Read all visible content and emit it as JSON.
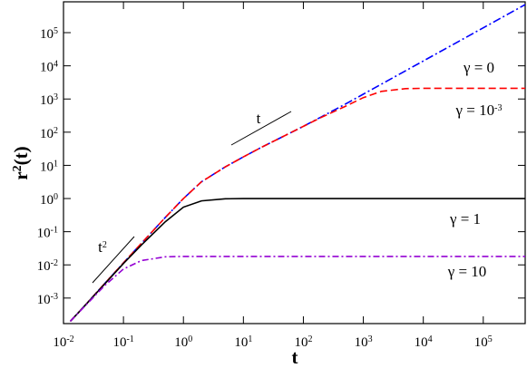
{
  "chart_data": {
    "type": "line",
    "log_x": true,
    "log_y": true,
    "xlabel": "t",
    "ylabel": {
      "base": "r",
      "exponent": "2",
      "rest": "(t)"
    },
    "xlim": [
      0.01,
      500000
    ],
    "ylim": [
      0.00017,
      850000
    ],
    "xticks": [
      {
        "value": 0.01,
        "label": "10",
        "exponent": "-2"
      },
      {
        "value": 0.1,
        "label": "10",
        "exponent": "-1"
      },
      {
        "value": 1,
        "label": "10",
        "exponent": "0"
      },
      {
        "value": 10,
        "label": "10",
        "exponent": "1"
      },
      {
        "value": 100,
        "label": "10",
        "exponent": "2"
      },
      {
        "value": 1000,
        "label": "10",
        "exponent": "3"
      },
      {
        "value": 10000,
        "label": "10",
        "exponent": "4"
      },
      {
        "value": 100000,
        "label": "10",
        "exponent": "5"
      }
    ],
    "yticks": [
      {
        "value": 0.001,
        "label": "10",
        "exponent": "-3"
      },
      {
        "value": 0.01,
        "label": "10",
        "exponent": "-2"
      },
      {
        "value": 0.1,
        "label": "10",
        "exponent": "-1"
      },
      {
        "value": 1,
        "label": "10",
        "exponent": "0"
      },
      {
        "value": 10,
        "label": "10",
        "exponent": "1"
      },
      {
        "value": 100,
        "label": "10",
        "exponent": "2"
      },
      {
        "value": 1000,
        "label": "10",
        "exponent": "3"
      },
      {
        "value": 10000,
        "label": "10",
        "exponent": "4"
      },
      {
        "value": 100000,
        "label": "10",
        "exponent": "5"
      }
    ],
    "x": [
      0.013,
      0.02,
      0.05,
      0.1,
      0.2,
      0.5,
      1,
      2,
      5,
      10,
      20,
      50,
      100,
      200,
      500,
      1000,
      2000,
      5000,
      10000,
      100000,
      500000
    ],
    "series": [
      {
        "name": "γ = 0",
        "color": "#0000ff",
        "dash": "9,3,2,3",
        "values": [
          0.0002,
          0.00046,
          0.0029,
          0.0115,
          0.045,
          0.27,
          1.0,
          3.2,
          9,
          18,
          35,
          80,
          150,
          290,
          700,
          1400,
          2800,
          7000,
          14000,
          140000,
          700000
        ]
      },
      {
        "name": "γ = 10",
        "name_exponent": "-3",
        "color": "#ff0000",
        "dash": "8,4",
        "values": [
          0.0002,
          0.00046,
          0.0029,
          0.0115,
          0.045,
          0.27,
          1.0,
          3.2,
          9,
          18,
          35,
          80,
          150,
          280,
          600,
          1100,
          1700,
          2050,
          2100,
          2100,
          2100
        ]
      },
      {
        "name": "γ = 1",
        "color": "#000000",
        "dash": "none",
        "values": [
          0.0002,
          0.00046,
          0.0028,
          0.011,
          0.04,
          0.2,
          0.55,
          0.85,
          0.98,
          1,
          1,
          1,
          1,
          1,
          1,
          1,
          1,
          1,
          1,
          1,
          1
        ]
      },
      {
        "name": "γ = 10",
        "color": "#9400d3",
        "dash": "7,3,2,3",
        "values": [
          0.0002,
          0.00045,
          0.0025,
          0.0075,
          0.0135,
          0.0175,
          0.018,
          0.018,
          0.018,
          0.018,
          0.018,
          0.018,
          0.018,
          0.018,
          0.018,
          0.018,
          0.018,
          0.018,
          0.018,
          0.018,
          0.018
        ]
      }
    ],
    "annotations": [
      {
        "text": "t",
        "exponent": "2"
      },
      {
        "text": "t"
      }
    ]
  }
}
